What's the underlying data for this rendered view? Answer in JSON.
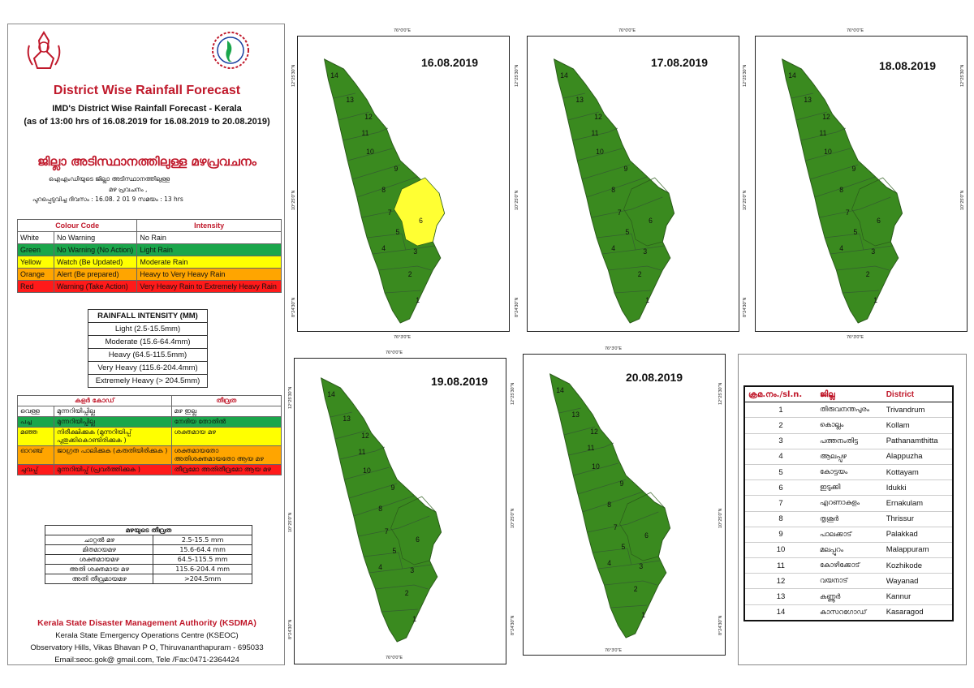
{
  "header": {
    "title": "District Wise Rainfall Forecast",
    "subtitle": "IMD's District Wise Rainfall Forecast - Kerala",
    "validity": "(as of 13:00 hrs of 16.08.2019  for 16.08.2019  to 20.08.2019)",
    "ml_title": "ജില്ലാ അടിസ്ഥാനത്തിലുള്ള മഴപ്രവചനം",
    "ml_sub1": "ഐഎംഡിയുടെ      ജില്ലാ      അടിസ്ഥാനത്തിലുള്ള",
    "ml_sub2": "മഴ പ്രവചനം     ,",
    "ml_sub3": "പുറപ്പെടുവിച്ച      ദിവസം  :  16.08.   2 01 9   സമയം  :  13   hrs"
  },
  "colour_code": {
    "headers": [
      "Colour Code",
      "Intensity"
    ],
    "rows": [
      {
        "colour": "White",
        "code": "No Warning",
        "intensity": "No Rain",
        "bg": "#ffffff"
      },
      {
        "colour": "Green",
        "code": "No Warning (No Action)",
        "intensity": "Light Rain",
        "bg": "#1aa64b"
      },
      {
        "colour": "Yellow",
        "code": "Watch (Be Updated)",
        "intensity": "Moderate Rain",
        "bg": "#ffff00"
      },
      {
        "colour": "Orange",
        "code": "Alert (Be prepared)",
        "intensity": "Heavy to Very Heavy Rain",
        "bg": "#ffa500"
      },
      {
        "colour": "Red",
        "code": "Warning (Take Action)",
        "intensity": "Very Heavy Rain to Extremely Heavy Rain",
        "bg": "#ff1a1a"
      }
    ]
  },
  "rainfall_intensity": {
    "title": "RAINFALL INTENSITY (MM)",
    "rows": [
      "Light (2.5-15.5mm)",
      "Moderate (15.6-64.4mm)",
      "Heavy (64.5-115.5mm)",
      "Very Heavy (115.6-204.4mm)",
      "Extremely Heavy (> 204.5mm)"
    ]
  },
  "ml_colour_code": {
    "headers": [
      "കളർ കോഡ്",
      "തീവ്രത"
    ],
    "rows": [
      {
        "colour": "വെള്ള",
        "code": "മുന്നറിയിപ്പില്ല",
        "intensity": "മഴ ഇല്ല",
        "bg": "#ffffff"
      },
      {
        "colour": "പച്ച",
        "code": "മുന്നറിയിപ്പില്ല",
        "intensity": "നേരിയ തോതിൽ",
        "bg": "#1aa64b"
      },
      {
        "colour": "മഞ്ഞ",
        "code": "നിരീക്ഷിക്കുക (മുന്നറിയിപ്പ് പുതുക്കികൊണ്ടിരിക്കുക )",
        "intensity": "ശക്തമായ മഴ",
        "bg": "#ffff00"
      },
      {
        "colour": "ഓറഞ്ച്",
        "code": "ജാഗ്രത പാലിക്കുക (കരുതിയിരിക്കുക )",
        "intensity": "ശക്തമായതോ അതിശക്തമായതോ ആയ മഴ",
        "bg": "#ffa500"
      },
      {
        "colour": "ചുവപ്പ്",
        "code": "മുന്നറിയിപ്പ് (പ്രവർത്തിക്കുക )",
        "intensity": "തീവ്രമോ അതിതീവ്രമോ ആയ മഴ",
        "bg": "#ff1a1a"
      }
    ]
  },
  "ml_intensity": {
    "title": "മഴയുടെ തീവ്രത",
    "rows": [
      {
        "label": "ചാറ്റൽ മഴ",
        "value": "2.5-15.5 mm"
      },
      {
        "label": "മിതമായമഴ",
        "value": "15.6-64.4 mm"
      },
      {
        "label": "ശക്തമായമഴ",
        "value": "64.5-115.5 mm"
      },
      {
        "label": "അതി ശക്തമായ മഴ",
        "value": "115.6-204.4 mm"
      },
      {
        "label": "അതി തീവ്രമായമഴ",
        "value": ">204.5mm"
      }
    ]
  },
  "footer": {
    "org": "Kerala State Disaster Management Authority (KSDMA)",
    "line2": "Kerala State Emergency Operations Centre (KSEOC)",
    "line3": "Observatory Hills, Vikas Bhavan P O, Thiruvananthapuram - 695033",
    "line4": "Email:seoc.gok@ gmail.com, Tele /Fax:0471-2364424"
  },
  "map_labels": {
    "lon_top": "76°0'0\"E",
    "lon_bot": "76°3'0\"E",
    "lat1": "12°25'30\"N",
    "lat2": "10°25'0\"N",
    "lat3": "8°24'30\"N"
  },
  "maps": [
    {
      "date": "16.08.2019",
      "highlight_district": "6",
      "highlight_color": "#ffff33"
    },
    {
      "date": "17.08.2019",
      "highlight_district": "",
      "highlight_color": ""
    },
    {
      "date": "18.08.2019",
      "highlight_district": "",
      "highlight_color": ""
    },
    {
      "date": "19.08.2019",
      "highlight_district": "",
      "highlight_color": ""
    },
    {
      "date": "20.08.2019",
      "highlight_district": "",
      "highlight_color": ""
    }
  ],
  "colors": {
    "map_green": "#3a8a1f",
    "red_title": "#c0192b"
  },
  "districts": {
    "headers": [
      "ക്രമ.നം./sl.n.",
      "ജില്ല",
      "District"
    ],
    "rows": [
      {
        "n": "1",
        "ml": "തിരുവനന്തപുരം",
        "en": "Trivandrum"
      },
      {
        "n": "2",
        "ml": "കൊല്ലം",
        "en": "Kollam"
      },
      {
        "n": "3",
        "ml": "പത്തനംതിട്ട",
        "en": "Pathanamthitta"
      },
      {
        "n": "4",
        "ml": "ആലപ്പുഴ",
        "en": "Alappuzha"
      },
      {
        "n": "5",
        "ml": "കോട്ടയം",
        "en": "Kottayam"
      },
      {
        "n": "6",
        "ml": "ഇടുക്കി",
        "en": "Idukki"
      },
      {
        "n": "7",
        "ml": "എറണാകുളം",
        "en": "Ernakulam"
      },
      {
        "n": "8",
        "ml": "തൃശൂർ",
        "en": "Thrissur"
      },
      {
        "n": "9",
        "ml": "പാലക്കാട്",
        "en": "Palakkad"
      },
      {
        "n": "10",
        "ml": "മലപ്പുറം",
        "en": "Malappuram"
      },
      {
        "n": "11",
        "ml": "കോഴിക്കോട്",
        "en": "Kozhikode"
      },
      {
        "n": "12",
        "ml": "വയനാട്",
        "en": "Wayanad"
      },
      {
        "n": "13",
        "ml": "കണ്ണൂർ",
        "en": "Kannur"
      },
      {
        "n": "14",
        "ml": "കാസറഗോഡ്",
        "en": "Kasaragod"
      }
    ]
  }
}
